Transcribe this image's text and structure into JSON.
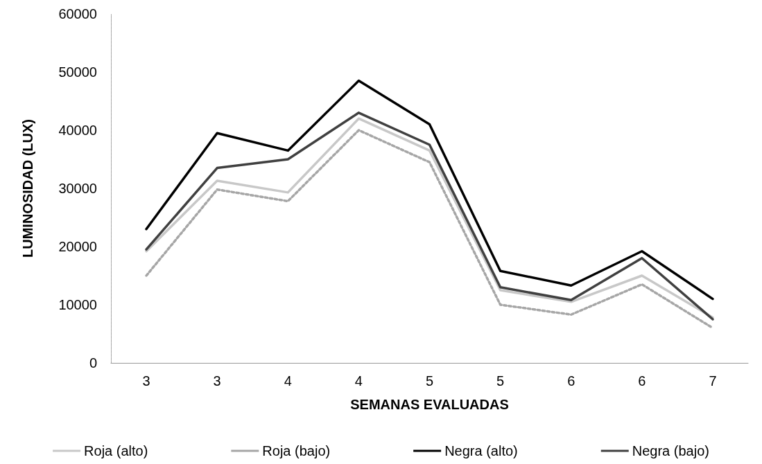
{
  "chart_data": {
    "type": "line",
    "xlabel": "SEMANAS EVALUADAS",
    "ylabel": "LUMINOSIDAD (LUX)",
    "categories": [
      "3",
      "3",
      "4",
      "4",
      "5",
      "5",
      "6",
      "6",
      "7"
    ],
    "series": [
      {
        "name": "Roja (alto)",
        "color": "#c8c8c8",
        "values": [
          19200,
          31300,
          29300,
          42000,
          36500,
          12500,
          10500,
          15000,
          7800
        ]
      },
      {
        "name": "Roja (bajo)",
        "color": "#a6a6a6",
        "line_style": "dotted",
        "values": [
          15000,
          29800,
          27800,
          40000,
          34500,
          10000,
          8300,
          13500,
          6000
        ]
      },
      {
        "name": "Negra (alto)",
        "color": "#000000",
        "values": [
          23000,
          39500,
          36500,
          48500,
          41000,
          15800,
          13300,
          19200,
          11000
        ]
      },
      {
        "name": "Negra (bajo)",
        "color": "#404040",
        "values": [
          19500,
          33500,
          35000,
          43000,
          37500,
          13000,
          10800,
          18000,
          7500
        ]
      }
    ],
    "ylim": [
      0,
      60000
    ],
    "yticks": [
      0,
      10000,
      20000,
      30000,
      40000,
      50000,
      60000
    ],
    "grid": false,
    "legend": "bottom",
    "marker": "none",
    "line_style": "solid"
  }
}
